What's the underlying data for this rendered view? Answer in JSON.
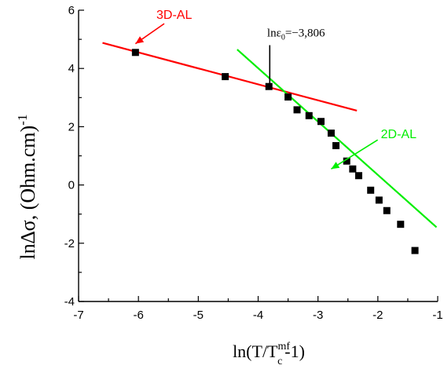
{
  "chart_data": {
    "type": "scatter",
    "xlim": [
      -7,
      -1
    ],
    "ylim": [
      -4,
      6
    ],
    "x_ticks": [
      "-7",
      "-6",
      "-5",
      "-4",
      "-3",
      "-2",
      "-1"
    ],
    "y_ticks": [
      "-4",
      "-2",
      "0",
      "2",
      "4",
      "6"
    ],
    "ylabel": {
      "main": "ln∆σ, (Ohm.cm)",
      "sup": "-1"
    },
    "xlabel": {
      "prefix": "ln(T/T",
      "sup": "mf",
      "sub": "c",
      "suffix": "-1)"
    },
    "grid": false,
    "series": [
      {
        "marker": "square",
        "color": "#000000",
        "points": [
          [
            -6.05,
            4.55
          ],
          [
            -4.55,
            3.72
          ],
          [
            -3.82,
            3.38
          ],
          [
            -3.5,
            3.02
          ],
          [
            -3.35,
            2.58
          ],
          [
            -3.15,
            2.38
          ],
          [
            -2.95,
            2.18
          ],
          [
            -2.78,
            1.78
          ],
          [
            -2.7,
            1.35
          ],
          [
            -2.52,
            0.82
          ],
          [
            -2.42,
            0.55
          ],
          [
            -2.32,
            0.32
          ],
          [
            -2.12,
            -0.18
          ],
          [
            -1.98,
            -0.52
          ],
          [
            -1.85,
            -0.88
          ],
          [
            -1.62,
            -1.35
          ],
          [
            -1.38,
            -2.25
          ]
        ]
      }
    ],
    "fit_lines": [
      {
        "label": "3D-AL",
        "color": "#ff0000",
        "x": [
          -6.6,
          -2.35
        ],
        "y": [
          4.88,
          2.55
        ]
      },
      {
        "label": "2D-AL",
        "color": "#00ee00",
        "x": [
          -4.35,
          -1.02
        ],
        "y": [
          4.65,
          -1.45
        ]
      }
    ],
    "annotations": [
      {
        "id": "3d",
        "text": "3D-AL",
        "color": "#ff0000",
        "text_x": -5.7,
        "text_y": 5.7,
        "arrow_to_x": -6.05,
        "arrow_to_y": 4.85
      },
      {
        "id": "2d",
        "text": "2D-AL",
        "color": "#00ee00",
        "text_x": -1.95,
        "text_y": 1.6,
        "arrow_to_x": -2.78,
        "arrow_to_y": 0.55
      },
      {
        "id": "eps0",
        "prefix": "lnε",
        "sub": "0",
        "value": "=−3,806",
        "color": "#000000",
        "text_x": -3.85,
        "text_y": 5.1,
        "marker_x": -3.806,
        "marker_y_top": 4.8,
        "marker_y_bottom": 3.45
      }
    ]
  }
}
